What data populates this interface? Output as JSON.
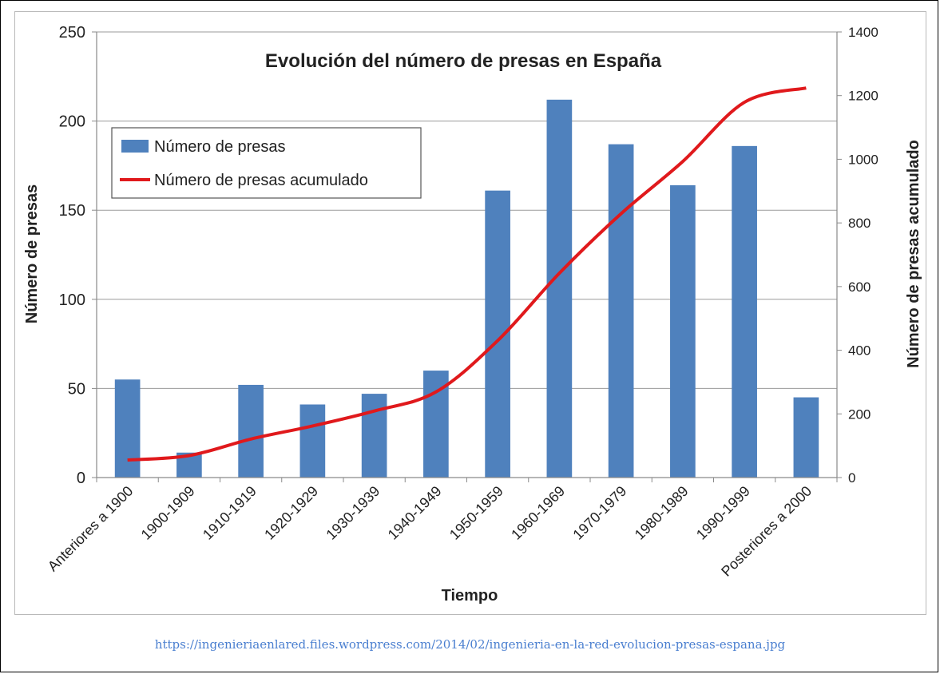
{
  "chart_data": {
    "type": "bar",
    "title": "Evolución del número de presas en España",
    "xlabel": "Tiempo",
    "ylabel": "Número de presas",
    "y2label": "Número de presas acumulado",
    "categories": [
      "Anteriores a 1900",
      "1900-1909",
      "1910-1919",
      "1920-1929",
      "1930-1939",
      "1940-1949",
      "1950-1959",
      "1960-1969",
      "1970-1979",
      "1980-1989",
      "1990-1999",
      "Posteriores a 2000"
    ],
    "series": [
      {
        "name": "Número de presas",
        "type": "bar",
        "axis": "left",
        "color": "#4f81bd",
        "values": [
          55,
          14,
          52,
          41,
          47,
          60,
          161,
          212,
          187,
          164,
          186,
          45
        ]
      },
      {
        "name": "Número de presas acumulado",
        "type": "line",
        "axis": "right",
        "color": "#e0191c",
        "values": [
          55,
          69,
          121,
          162,
          209,
          269,
          430,
          642,
          829,
          993,
          1179,
          1224
        ]
      }
    ],
    "ylim": [
      0,
      250
    ],
    "yticks": [
      0,
      50,
      100,
      150,
      200,
      250
    ],
    "y2lim": [
      0,
      1400
    ],
    "y2ticks": [
      0,
      200,
      400,
      600,
      800,
      1000,
      1200,
      1400
    ],
    "grid": true,
    "legend_position": "top-left"
  },
  "source": {
    "url": "https://ingenieriaenlared.files.wordpress.com/2014/02/ingenieria-en-la-red-evolucion-presas-espana.jpg"
  }
}
